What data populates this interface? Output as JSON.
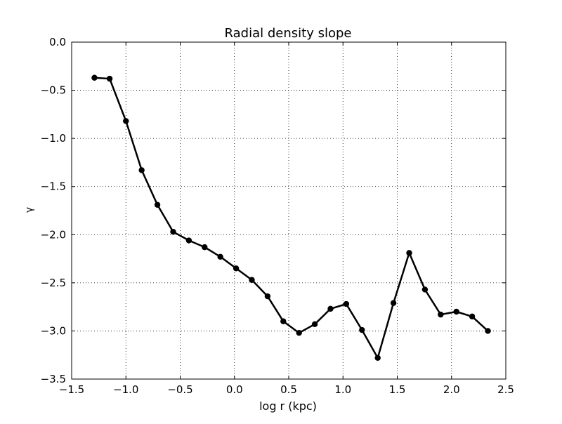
{
  "chart_data": {
    "type": "line",
    "title": "Radial density slope",
    "xlabel": "log r (kpc)",
    "ylabel": "γ",
    "xlim": [
      -1.5,
      2.5
    ],
    "ylim": [
      -3.5,
      0.0
    ],
    "xticks": [
      -1.5,
      -1.0,
      -0.5,
      0.0,
      0.5,
      1.0,
      1.5,
      2.0,
      2.5
    ],
    "xtick_labels": [
      "−1.5",
      "−1.0",
      "−0.5",
      "0.0",
      "0.5",
      "1.0",
      "1.5",
      "2.0",
      "2.5"
    ],
    "yticks": [
      0.0,
      -0.5,
      -1.0,
      -1.5,
      -2.0,
      -2.5,
      -3.0,
      -3.5
    ],
    "ytick_labels": [
      "0.0",
      "−0.5",
      "−1.0",
      "−1.5",
      "−2.0",
      "−2.5",
      "−3.0",
      "−3.5"
    ],
    "grid": true,
    "series": [
      {
        "color": "#000000",
        "marker": "circle",
        "x": [
          -1.29,
          -1.15,
          -1.0,
          -0.855,
          -0.71,
          -0.565,
          -0.42,
          -0.275,
          -0.13,
          0.015,
          0.16,
          0.305,
          0.45,
          0.595,
          0.74,
          0.885,
          1.03,
          1.175,
          1.32,
          1.465,
          1.61,
          1.755,
          1.9,
          2.045,
          2.19,
          2.335
        ],
        "values": [
          -0.37,
          -0.38,
          -0.82,
          -1.33,
          -1.69,
          -1.97,
          -2.06,
          -2.13,
          -2.23,
          -2.35,
          -2.47,
          -2.64,
          -2.9,
          -3.02,
          -2.93,
          -2.77,
          -2.72,
          -2.99,
          -3.28,
          -2.71,
          -2.19,
          -2.57,
          -2.83,
          -2.8,
          -2.85,
          -3.0
        ]
      }
    ]
  }
}
